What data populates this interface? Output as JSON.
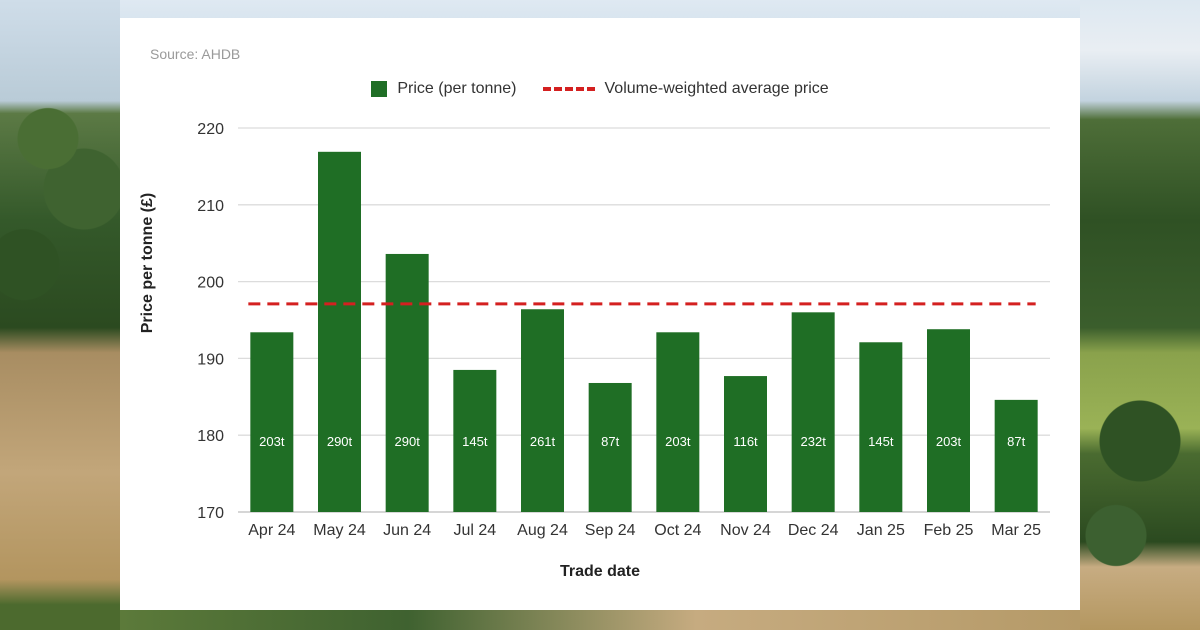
{
  "source": "Source: AHDB",
  "chart_data": {
    "type": "bar",
    "categories": [
      "Apr 24",
      "May 24",
      "Jun 24",
      "Jul 24",
      "Aug 24",
      "Sep 24",
      "Oct 24",
      "Nov 24",
      "Dec 24",
      "Jan 25",
      "Feb 25",
      "Mar 25"
    ],
    "series": [
      {
        "name": "Price (per tonne)",
        "values": [
          193.4,
          216.9,
          203.6,
          188.5,
          196.4,
          186.8,
          193.4,
          187.7,
          196.0,
          192.1,
          193.8,
          184.6
        ],
        "data_labels": [
          "203t",
          "290t",
          "290t",
          "145t",
          "261t",
          "87t",
          "203t",
          "116t",
          "232t",
          "145t",
          "203t",
          "87t"
        ],
        "color": "#1f6e25"
      }
    ],
    "reference_line": {
      "name": "Volume-weighted average price",
      "value": 197.1,
      "color": "#d42020",
      "style": "dashed"
    },
    "xlabel": "Trade date",
    "ylabel": "Price per tonne (£)",
    "ylim": [
      170,
      220
    ],
    "yticks": [
      170,
      180,
      190,
      200,
      210,
      220
    ],
    "grid": true,
    "legend_position": "top-center"
  }
}
